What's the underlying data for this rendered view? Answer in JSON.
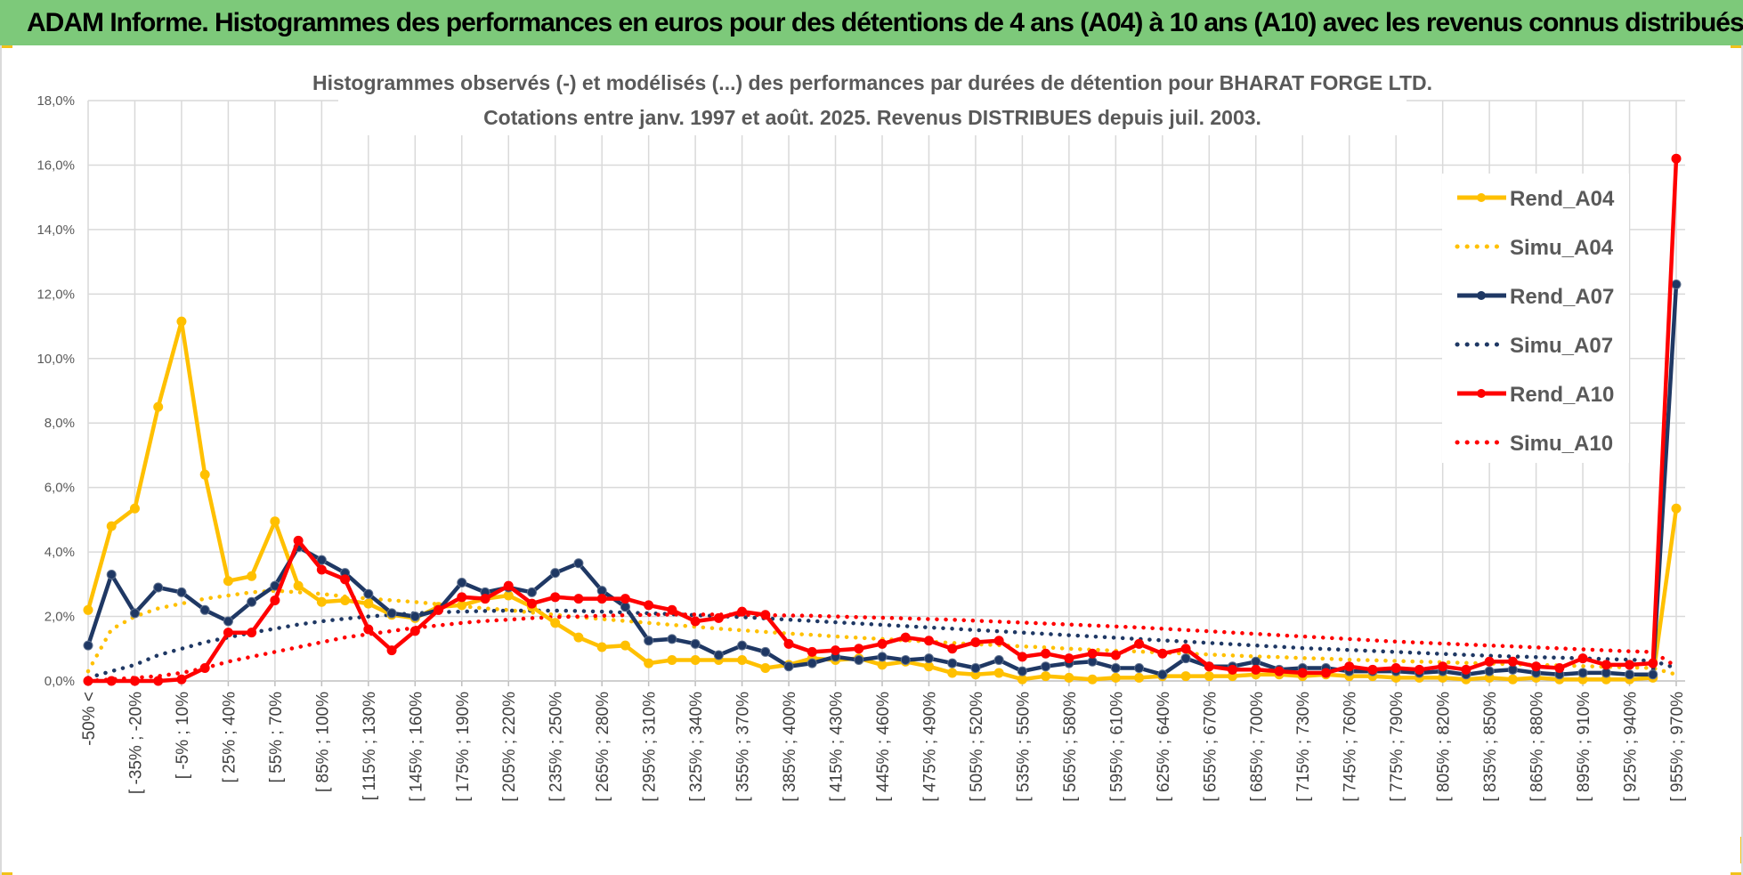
{
  "banner": {
    "title": "ADAM Informe. Histogrammes des performances en euros pour des détentions de 4 ans (A04) à 10 ans (A10) avec les revenus connus distribués",
    "background": "#7dc97a"
  },
  "chart_data": {
    "type": "line",
    "title": "Histogrammes observés (-) et modélisés (...) des performances par durées de détention pour BHARAT FORGE LTD.",
    "subtitle": "Cotations entre janv. 1997 et août. 2025. Revenus DISTRIBUES depuis juil. 2003.",
    "xlabel": "",
    "ylabel": "",
    "ylim": [
      0,
      18
    ],
    "yticks": [
      "0,0%",
      "2,0%",
      "4,0%",
      "6,0%",
      "8,0%",
      "10,0%",
      "12,0%",
      "14,0%",
      "16,0%",
      "18,0%"
    ],
    "grid": true,
    "legend_position": "right",
    "x_tick_labels": [
      "-50% <",
      "[ -35% ; -20%",
      "[ -5% ; 10%",
      "[ 25% ; 40%",
      "[ 55% ; 70%",
      "[ 85% ; 100%",
      "[ 115% ; 130%",
      "[ 145% ; 160%",
      "[ 175% ; 190%",
      "[ 205% ; 220%",
      "[ 235% ; 250%",
      "[ 265% ; 280%",
      "[ 295% ; 310%",
      "[ 325% ; 340%",
      "[ 355% ; 370%",
      "[ 385% ; 400%",
      "[ 415% ; 430%",
      "[ 445% ; 460%",
      "[ 475% ; 490%",
      "[ 505% ; 520%",
      "[ 535% ; 550%",
      "[ 565% ; 580%",
      "[ 595% ; 610%",
      "[ 625% ; 640%",
      "[ 655% ; 670%",
      "[ 685% ; 700%",
      "[ 715% ; 730%",
      "[ 745% ; 760%",
      "[ 775% ; 790%",
      "[ 805% ; 820%",
      "[ 835% ; 850%",
      "[ 865% ; 880%",
      "[ 895% ; 910%",
      "[ 925% ; 940%",
      "[ 955% ; 970%"
    ],
    "n_points": 69,
    "series": [
      {
        "name": "Rend_A04",
        "style": "solid",
        "color": "#ffc000",
        "values": [
          2.2,
          4.8,
          5.35,
          8.5,
          11.15,
          6.4,
          3.1,
          3.25,
          4.95,
          2.95,
          2.45,
          2.5,
          2.4,
          2.05,
          1.95,
          2.3,
          2.35,
          2.55,
          2.65,
          2.3,
          1.8,
          1.35,
          1.05,
          1.1,
          0.55,
          0.65,
          0.65,
          0.65,
          0.65,
          0.4,
          0.5,
          0.7,
          0.65,
          0.7,
          0.5,
          0.6,
          0.45,
          0.25,
          0.2,
          0.25,
          0.05,
          0.15,
          0.1,
          0.05,
          0.1,
          0.1,
          0.15,
          0.15,
          0.15,
          0.15,
          0.2,
          0.2,
          0.15,
          0.2,
          0.15,
          0.15,
          0.1,
          0.1,
          0.1,
          0.05,
          0.1,
          0.05,
          0.1,
          0.05,
          0.05,
          0.05,
          0.05,
          0.1,
          5.35
        ]
      },
      {
        "name": "Simu_A04",
        "style": "dotted",
        "color": "#ffc000",
        "values": [
          0.3,
          1.6,
          2.0,
          2.25,
          2.4,
          2.55,
          2.65,
          2.75,
          2.8,
          2.75,
          2.7,
          2.62,
          2.55,
          2.5,
          2.45,
          2.38,
          2.32,
          2.25,
          2.2,
          2.12,
          2.05,
          1.98,
          1.92,
          1.86,
          1.8,
          1.74,
          1.68,
          1.62,
          1.57,
          1.52,
          1.47,
          1.43,
          1.38,
          1.34,
          1.3,
          1.26,
          1.22,
          1.18,
          1.14,
          1.11,
          1.07,
          1.04,
          1.0,
          0.97,
          0.94,
          0.91,
          0.88,
          0.85,
          0.82,
          0.79,
          0.76,
          0.74,
          0.71,
          0.69,
          0.66,
          0.64,
          0.62,
          0.6,
          0.58,
          0.56,
          0.54,
          0.52,
          0.5,
          0.48,
          0.46,
          0.44,
          0.42,
          0.4,
          0.2
        ]
      },
      {
        "name": "Rend_A07",
        "style": "solid",
        "color": "#1f3864",
        "values": [
          1.1,
          3.3,
          2.1,
          2.9,
          2.75,
          2.2,
          1.85,
          2.45,
          2.95,
          4.15,
          3.75,
          3.35,
          2.7,
          2.1,
          2.0,
          2.2,
          3.05,
          2.75,
          2.9,
          2.75,
          3.35,
          3.65,
          2.8,
          2.3,
          1.25,
          1.3,
          1.15,
          0.8,
          1.1,
          0.9,
          0.45,
          0.55,
          0.75,
          0.65,
          0.75,
          0.65,
          0.7,
          0.55,
          0.4,
          0.65,
          0.3,
          0.45,
          0.55,
          0.6,
          0.4,
          0.4,
          0.2,
          0.7,
          0.45,
          0.45,
          0.6,
          0.35,
          0.4,
          0.4,
          0.3,
          0.3,
          0.3,
          0.25,
          0.3,
          0.2,
          0.3,
          0.35,
          0.25,
          0.2,
          0.25,
          0.25,
          0.2,
          0.2,
          12.3
        ]
      },
      {
        "name": "Simu_A07",
        "style": "dotted",
        "color": "#1f3864",
        "values": [
          0.1,
          0.3,
          0.5,
          0.8,
          1.0,
          1.2,
          1.35,
          1.5,
          1.62,
          1.75,
          1.85,
          1.93,
          2.0,
          2.05,
          2.1,
          2.13,
          2.15,
          2.17,
          2.18,
          2.18,
          2.18,
          2.17,
          2.15,
          2.12,
          2.1,
          2.07,
          2.04,
          2.01,
          1.98,
          1.94,
          1.9,
          1.86,
          1.82,
          1.78,
          1.74,
          1.7,
          1.66,
          1.62,
          1.58,
          1.54,
          1.5,
          1.46,
          1.42,
          1.38,
          1.34,
          1.3,
          1.26,
          1.22,
          1.18,
          1.14,
          1.1,
          1.06,
          1.02,
          0.99,
          0.96,
          0.93,
          0.9,
          0.87,
          0.84,
          0.81,
          0.78,
          0.76,
          0.74,
          0.72,
          0.7,
          0.68,
          0.66,
          0.62,
          0.4
        ]
      },
      {
        "name": "Rend_A10",
        "style": "solid",
        "color": "#ff0000",
        "values": [
          0.0,
          0.0,
          0.0,
          0.0,
          0.05,
          0.4,
          1.5,
          1.5,
          2.5,
          4.35,
          3.45,
          3.15,
          1.6,
          0.95,
          1.55,
          2.2,
          2.6,
          2.55,
          2.95,
          2.4,
          2.6,
          2.55,
          2.55,
          2.55,
          2.35,
          2.2,
          1.85,
          1.95,
          2.15,
          2.05,
          1.15,
          0.9,
          0.95,
          1.0,
          1.15,
          1.35,
          1.25,
          1.0,
          1.2,
          1.25,
          0.75,
          0.85,
          0.7,
          0.85,
          0.8,
          1.15,
          0.85,
          1.0,
          0.45,
          0.35,
          0.35,
          0.3,
          0.25,
          0.25,
          0.45,
          0.35,
          0.4,
          0.35,
          0.45,
          0.35,
          0.6,
          0.6,
          0.45,
          0.4,
          0.7,
          0.5,
          0.5,
          0.55,
          16.2
        ]
      },
      {
        "name": "Simu_A10",
        "style": "dotted",
        "color": "#ff0000",
        "values": [
          0.0,
          0.05,
          0.1,
          0.15,
          0.25,
          0.4,
          0.6,
          0.75,
          0.9,
          1.05,
          1.2,
          1.35,
          1.45,
          1.55,
          1.65,
          1.72,
          1.8,
          1.86,
          1.9,
          1.95,
          1.98,
          2.0,
          2.02,
          2.04,
          2.05,
          2.06,
          2.06,
          2.06,
          2.05,
          2.04,
          2.03,
          2.02,
          2.0,
          1.98,
          1.96,
          1.94,
          1.92,
          1.9,
          1.87,
          1.84,
          1.81,
          1.78,
          1.75,
          1.72,
          1.69,
          1.66,
          1.62,
          1.58,
          1.54,
          1.5,
          1.46,
          1.42,
          1.38,
          1.34,
          1.3,
          1.26,
          1.22,
          1.19,
          1.16,
          1.13,
          1.1,
          1.07,
          1.04,
          1.01,
          0.98,
          0.95,
          0.92,
          0.9,
          0.45
        ]
      }
    ]
  }
}
